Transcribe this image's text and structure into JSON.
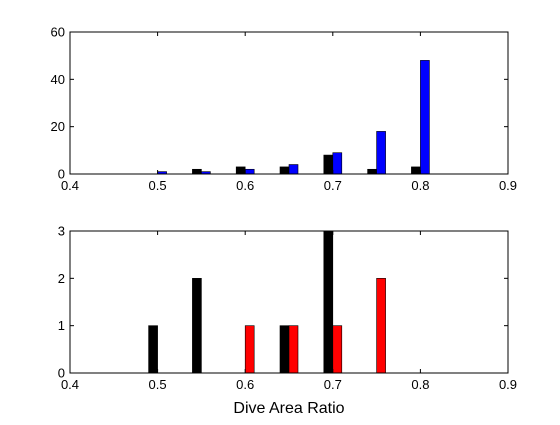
{
  "chart_data": [
    {
      "type": "bar",
      "xlim": [
        0.4,
        0.9
      ],
      "ylim": [
        0,
        60
      ],
      "xticks": [
        "0.4",
        "0.5",
        "0.6",
        "0.7",
        "0.8",
        "0.9"
      ],
      "yticks": [
        "0",
        "20",
        "40",
        "60"
      ],
      "xlabel": "",
      "ylabel": "",
      "grid": false,
      "series": [
        {
          "color": "#000000",
          "x": [
            0.5,
            0.55,
            0.6,
            0.65,
            0.7,
            0.75,
            0.8
          ],
          "values": [
            0,
            2,
            3,
            3,
            8,
            2,
            3
          ]
        },
        {
          "color": "#0000ff",
          "x": [
            0.5,
            0.55,
            0.6,
            0.65,
            0.7,
            0.75,
            0.8
          ],
          "values": [
            1,
            1,
            2,
            4,
            9,
            18,
            48
          ]
        }
      ]
    },
    {
      "type": "bar",
      "xlim": [
        0.4,
        0.9
      ],
      "ylim": [
        0,
        3
      ],
      "xticks": [
        "0.4",
        "0.5",
        "0.6",
        "0.7",
        "0.8",
        "0.9"
      ],
      "yticks": [
        "0",
        "1",
        "2",
        "3"
      ],
      "xlabel": "Dive Area Ratio",
      "ylabel": "",
      "grid": false,
      "series": [
        {
          "color": "#000000",
          "x": [
            0.5,
            0.55,
            0.6,
            0.65,
            0.7,
            0.75,
            0.8
          ],
          "values": [
            1,
            2,
            0,
            1,
            3,
            0,
            0
          ]
        },
        {
          "color": "#ff0000",
          "x": [
            0.5,
            0.55,
            0.6,
            0.65,
            0.7,
            0.75,
            0.8
          ],
          "values": [
            0,
            0,
            1,
            1,
            1,
            2,
            0
          ]
        }
      ]
    }
  ]
}
